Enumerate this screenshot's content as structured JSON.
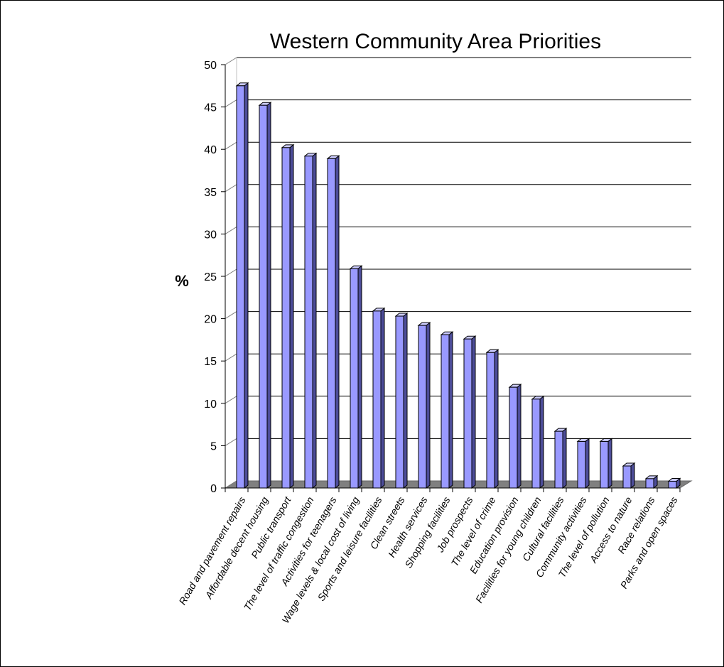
{
  "chart_data": {
    "type": "bar",
    "title": "Western Community Area Priorities",
    "xlabel": "",
    "ylabel": "%",
    "ylim": [
      0,
      50
    ],
    "ytick_step": 5,
    "grid": true,
    "legend": "none",
    "categories": [
      "Road and pavement repairs",
      "Affordable decent housing",
      "Public transport",
      "The level of traffic congestion",
      "Activities for teenagers",
      "Wage levels & local cost of living",
      "Sports and leisure facilities",
      "Clean streets",
      "Health services",
      "Shopping facilities",
      "Job prospects",
      "The level of crime",
      "Education provision",
      "Facilities for young children",
      "Cultural facilities",
      "Community activities",
      "The level of pollution",
      "Access to nature",
      "Race relations",
      "Parks and open spaces"
    ],
    "values": [
      47.5,
      45.2,
      40.2,
      39.2,
      38.9,
      25.9,
      20.9,
      20.3,
      19.2,
      18.1,
      17.6,
      16.0,
      11.9,
      10.5,
      6.7,
      5.5,
      5.5,
      2.6,
      1.1,
      0.8
    ],
    "colors": {
      "bar_front": "#9999ff",
      "bar_side": "#4d4d99",
      "bar_top": "#ccccff",
      "floor": "#808080",
      "grid": "#000000"
    }
  }
}
